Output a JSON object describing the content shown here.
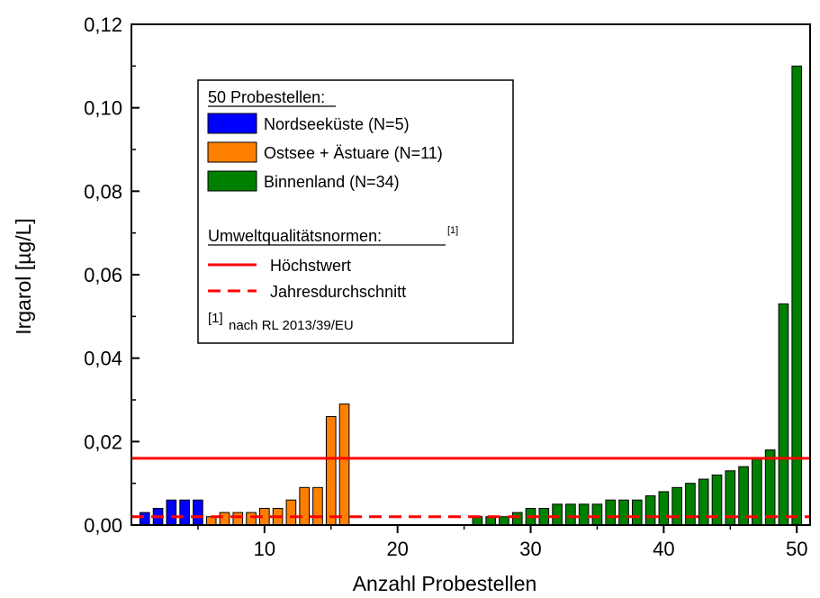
{
  "chart_data": {
    "type": "bar",
    "xlabel": "Anzahl Probestellen",
    "ylabel": "Irgarol [µg/L]",
    "xlim": [
      0,
      51
    ],
    "ylim": [
      0,
      0.12
    ],
    "x_ticks": [
      10,
      20,
      30,
      40,
      50
    ],
    "x_tick_labels": [
      "10",
      "20",
      "30",
      "40",
      "50"
    ],
    "y_ticks": [
      0,
      0.02,
      0.04,
      0.06,
      0.08,
      0.1,
      0.12
    ],
    "y_tick_labels": [
      "0,00",
      "0,02",
      "0,04",
      "0,06",
      "0,08",
      "0,10",
      "0,12"
    ],
    "series": [
      {
        "name": "Nordseeküste (N=5)",
        "color": "#0000ff",
        "x": [
          1,
          2,
          3,
          4,
          5
        ],
        "values": [
          0.003,
          0.004,
          0.006,
          0.006,
          0.006
        ]
      },
      {
        "name": "Ostsee + Ästuare (N=11)",
        "color": "#ff8000",
        "x": [
          6,
          7,
          8,
          9,
          10,
          11,
          12,
          13,
          14,
          15,
          16
        ],
        "values": [
          0.002,
          0.003,
          0.003,
          0.003,
          0.004,
          0.004,
          0.006,
          0.009,
          0.009,
          0.026,
          0.029
        ]
      },
      {
        "name": "Binnenland (N=34)",
        "color": "#008000",
        "x": [
          17,
          18,
          19,
          20,
          21,
          22,
          23,
          24,
          25,
          26,
          27,
          28,
          29,
          30,
          31,
          32,
          33,
          34,
          35,
          36,
          37,
          38,
          39,
          40,
          41,
          42,
          43,
          44,
          45,
          46,
          47,
          48,
          49,
          50
        ],
        "values": [
          0,
          0,
          0,
          0,
          0,
          0,
          0,
          0,
          0,
          0.002,
          0.002,
          0.002,
          0.003,
          0.004,
          0.004,
          0.005,
          0.005,
          0.005,
          0.005,
          0.006,
          0.006,
          0.006,
          0.007,
          0.008,
          0.009,
          0.01,
          0.011,
          0.012,
          0.013,
          0.014,
          0.016,
          0.018,
          0.053,
          0.11
        ]
      }
    ],
    "reference_lines": [
      {
        "name": "Höchstwert",
        "value": 0.016,
        "color": "#ff0000",
        "style": "solid"
      },
      {
        "name": "Jahresdurchschnitt",
        "value": 0.002,
        "color": "#ff0000",
        "style": "dashed"
      }
    ],
    "legend": {
      "placement": "top-left",
      "group_title": "50 Probestellen:",
      "norms_title": "Umweltqualitätsnormen:",
      "norms_sup": "[1]",
      "footnote_sup": "[1]",
      "footnote": "nach RL 2013/39/EU"
    },
    "grid": false
  }
}
